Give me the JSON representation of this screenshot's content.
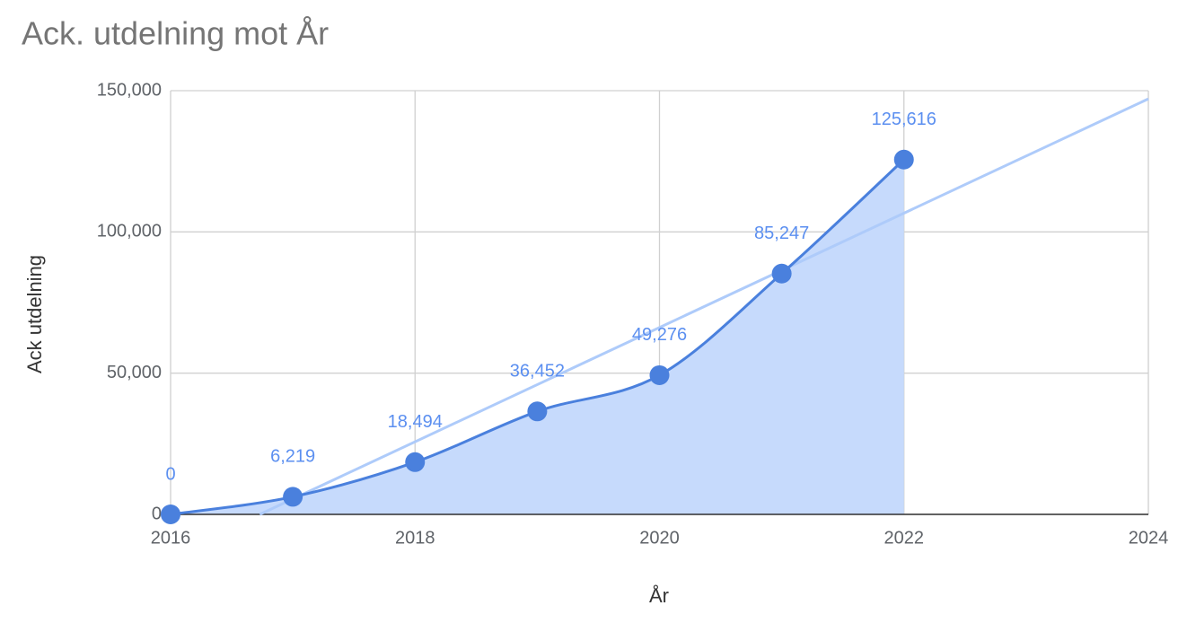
{
  "chart_data": {
    "type": "area",
    "title": "Ack. utdelning mot År",
    "xlabel": "År",
    "ylabel": "Ack utdelning",
    "x": [
      2016,
      2017,
      2018,
      2019,
      2020,
      2021,
      2022
    ],
    "values": [
      0,
      6219,
      18494,
      36452,
      49276,
      85247,
      125616
    ],
    "value_labels": [
      "0",
      "6,219",
      "18,494",
      "36,452",
      "49,276",
      "85,247",
      "125,616"
    ],
    "color": "#4a80dd",
    "fill_color": "#c6dafc",
    "label_color": "#5b8ff0",
    "smooth": true,
    "trendline": {
      "x": [
        2016.73,
        2024
      ],
      "values": [
        0,
        147100
      ],
      "color": "#aecbfa"
    },
    "xlim": [
      2016,
      2024
    ],
    "xticks": [
      2016,
      2018,
      2020,
      2022,
      2024
    ],
    "ylim": [
      0,
      150000
    ],
    "yticks": [
      0,
      {
        "value": 50000,
        "label": "50,000"
      },
      {
        "value": 100000,
        "label": "100,000"
      },
      {
        "value": 150000,
        "label": "150,000"
      }
    ],
    "grid": true
  }
}
